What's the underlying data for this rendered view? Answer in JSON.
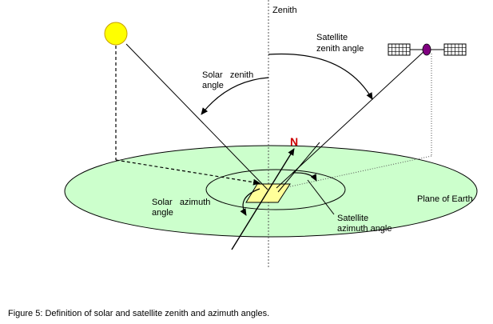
{
  "labels": {
    "zenith": "Zenith",
    "satellite_zenith_angle": [
      "Satellite",
      "zenith angle"
    ],
    "solar_zenith_angle": [
      "Solar   zenith",
      "angle"
    ],
    "north": "N",
    "solar_azimuth_angle": [
      "Solar   azimuth",
      "angle"
    ],
    "plane_of_earth": "Plane of Earth",
    "satellite_azimuth_angle": [
      "Satellite",
      "azimuth angle"
    ]
  },
  "caption": "Figure 5: Definition of solar and satellite zenith and azimuth angles.",
  "colors": {
    "earth_plane_fill": "#ccffcc",
    "sun_fill": "#ffff00",
    "sun_stroke": "#c8a000",
    "surface_patch_fill": "#ffff99",
    "satellite_body": "#800080",
    "north_marker": "#cc0000"
  },
  "icons": {
    "sun": "sun-icon",
    "satellite": "satellite-icon"
  }
}
